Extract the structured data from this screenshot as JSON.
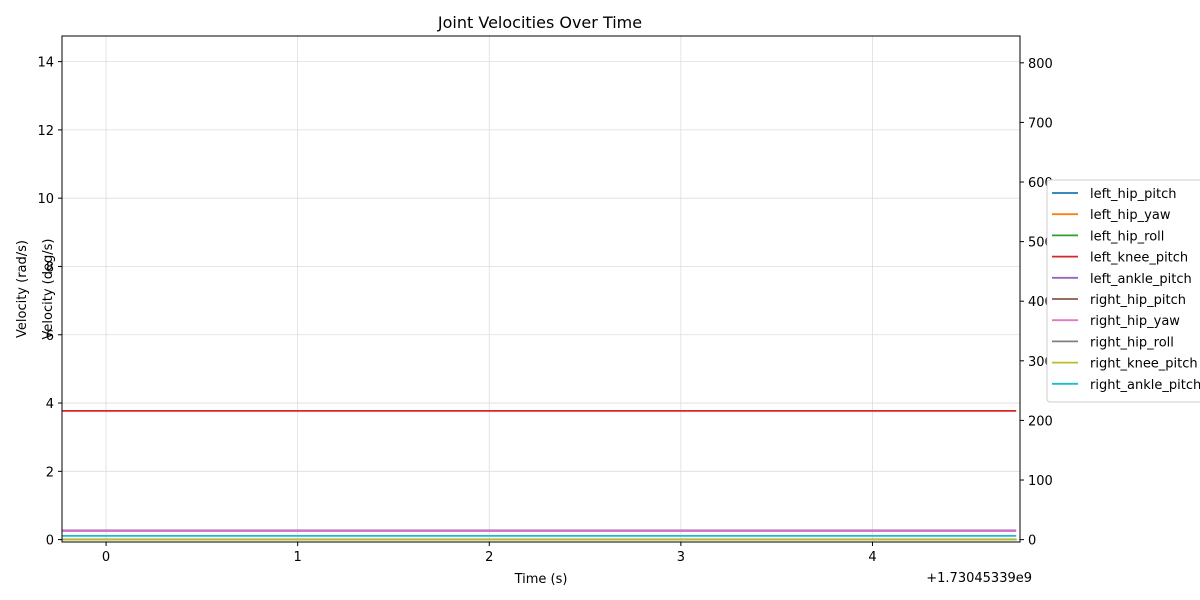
{
  "chart_data": {
    "type": "line",
    "title": "Joint Velocities Over Time",
    "xlabel": "Time (s)",
    "ylabel_left": "Velocity (rad/s)",
    "ylabel_right": "Velocity (deg/s)",
    "x_offset_label": "+1.73045339e9",
    "x_ticks": [
      "0",
      "1",
      "2",
      "3",
      "4"
    ],
    "y_ticks_left": [
      "0",
      "2",
      "4",
      "6",
      "8",
      "10",
      "12",
      "14"
    ],
    "y_ticks_right": [
      "0",
      "100",
      "200",
      "300",
      "400",
      "500",
      "600",
      "700",
      "800"
    ],
    "xlim": [
      -0.23,
      4.77
    ],
    "ylim_left": [
      -0.07,
      14.75
    ],
    "ylim_right": [
      -4.0,
      845.0
    ],
    "grid": true,
    "legend_position": "right, outside",
    "x": [
      -0.23,
      4.75
    ],
    "series": [
      {
        "name": "left_hip_pitch",
        "color": "#1f77b4",
        "values": [
          0.0,
          0.0
        ]
      },
      {
        "name": "left_hip_yaw",
        "color": "#ff7f0e",
        "values": [
          0.0,
          0.0
        ]
      },
      {
        "name": "left_hip_roll",
        "color": "#2ca02c",
        "values": [
          0.0,
          0.0
        ]
      },
      {
        "name": "left_knee_pitch",
        "color": "#d62728",
        "values": [
          3.77,
          3.77
        ]
      },
      {
        "name": "left_ankle_pitch",
        "color": "#9467bd",
        "values": [
          0.27,
          0.27
        ]
      },
      {
        "name": "right_hip_pitch",
        "color": "#8c564b",
        "values": [
          0.0,
          0.0
        ]
      },
      {
        "name": "right_hip_yaw",
        "color": "#e377c2",
        "values": [
          0.25,
          0.25
        ]
      },
      {
        "name": "right_hip_roll",
        "color": "#7f7f7f",
        "values": [
          0.0,
          0.0
        ]
      },
      {
        "name": "right_knee_pitch",
        "color": "#bcbd22",
        "values": [
          0.0,
          0.0
        ]
      },
      {
        "name": "right_ankle_pitch",
        "color": "#17becf",
        "values": [
          0.11,
          0.11
        ]
      }
    ]
  }
}
